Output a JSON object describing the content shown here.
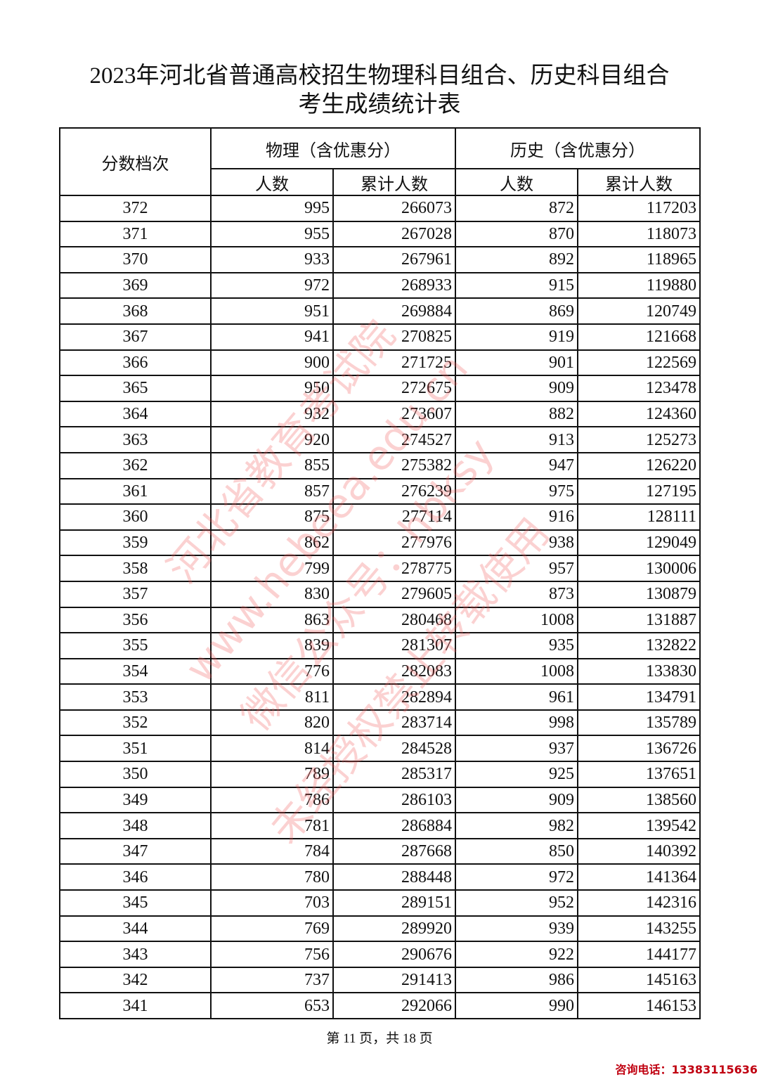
{
  "title_line1": "2023年河北省普通高校招生物理科目组合、历史科目组合",
  "title_line2": "考生成绩统计表",
  "headers": {
    "score": "分数档次",
    "physics": "物理（含优惠分）",
    "history": "历史（含优惠分）",
    "count": "人数",
    "cumulative": "累计人数"
  },
  "rows": [
    [
      "372",
      "995",
      "266073",
      "872",
      "117203"
    ],
    [
      "371",
      "955",
      "267028",
      "870",
      "118073"
    ],
    [
      "370",
      "933",
      "267961",
      "892",
      "118965"
    ],
    [
      "369",
      "972",
      "268933",
      "915",
      "119880"
    ],
    [
      "368",
      "951",
      "269884",
      "869",
      "120749"
    ],
    [
      "367",
      "941",
      "270825",
      "919",
      "121668"
    ],
    [
      "366",
      "900",
      "271725",
      "901",
      "122569"
    ],
    [
      "365",
      "950",
      "272675",
      "909",
      "123478"
    ],
    [
      "364",
      "932",
      "273607",
      "882",
      "124360"
    ],
    [
      "363",
      "920",
      "274527",
      "913",
      "125273"
    ],
    [
      "362",
      "855",
      "275382",
      "947",
      "126220"
    ],
    [
      "361",
      "857",
      "276239",
      "975",
      "127195"
    ],
    [
      "360",
      "875",
      "277114",
      "916",
      "128111"
    ],
    [
      "359",
      "862",
      "277976",
      "938",
      "129049"
    ],
    [
      "358",
      "799",
      "278775",
      "957",
      "130006"
    ],
    [
      "357",
      "830",
      "279605",
      "873",
      "130879"
    ],
    [
      "356",
      "863",
      "280468",
      "1008",
      "131887"
    ],
    [
      "355",
      "839",
      "281307",
      "935",
      "132822"
    ],
    [
      "354",
      "776",
      "282083",
      "1008",
      "133830"
    ],
    [
      "353",
      "811",
      "282894",
      "961",
      "134791"
    ],
    [
      "352",
      "820",
      "283714",
      "998",
      "135789"
    ],
    [
      "351",
      "814",
      "284528",
      "937",
      "136726"
    ],
    [
      "350",
      "789",
      "285317",
      "925",
      "137651"
    ],
    [
      "349",
      "786",
      "286103",
      "909",
      "138560"
    ],
    [
      "348",
      "781",
      "286884",
      "982",
      "139542"
    ],
    [
      "347",
      "784",
      "287668",
      "850",
      "140392"
    ],
    [
      "346",
      "780",
      "288448",
      "972",
      "141364"
    ],
    [
      "345",
      "703",
      "289151",
      "952",
      "142316"
    ],
    [
      "344",
      "769",
      "289920",
      "939",
      "143255"
    ],
    [
      "343",
      "756",
      "290676",
      "922",
      "144177"
    ],
    [
      "342",
      "737",
      "291413",
      "986",
      "145163"
    ],
    [
      "341",
      "653",
      "292066",
      "990",
      "146153"
    ]
  ],
  "footer": "第 11 页，共 18 页",
  "phone": "咨询电话：13383115636",
  "watermark": [
    "河北省教育考试院",
    "www.hebeea.edu.cn",
    "微信公众号：hbksy",
    "未经授权禁止转载使用"
  ]
}
